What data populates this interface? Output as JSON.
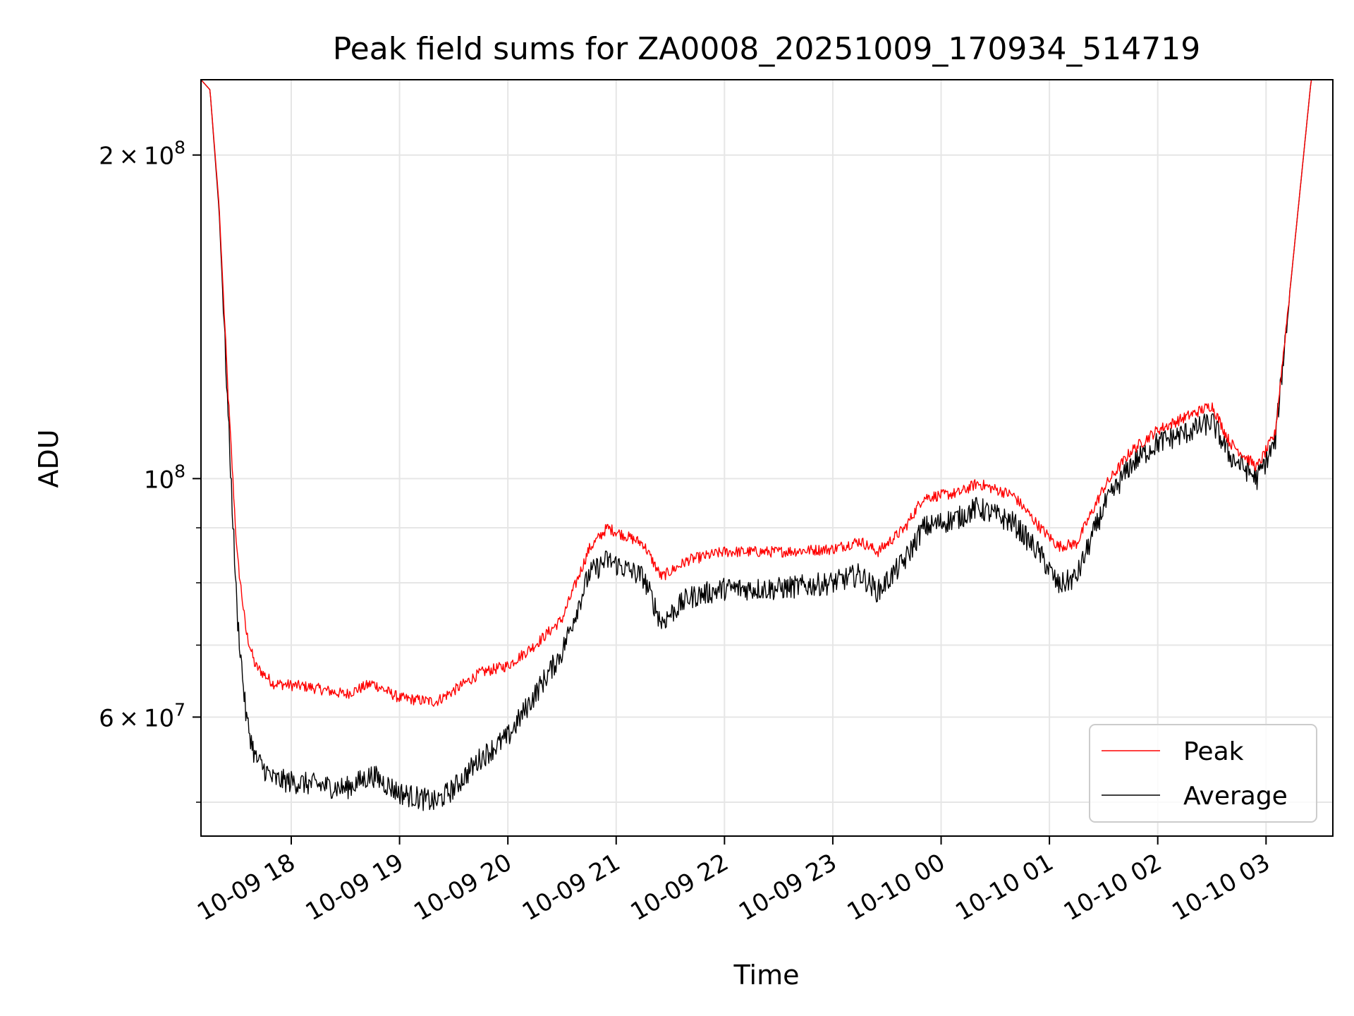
{
  "chart_data": {
    "type": "line",
    "title": "Peak field sums for ZA0008_20251009_170934_514719",
    "xlabel": "Time",
    "ylabel": "ADU",
    "y_scale": "log",
    "ylim": [
      46500000,
      235000000
    ],
    "xlim": [
      "2025-10-09 17:10",
      "2025-10-10 03:37"
    ],
    "grid": true,
    "legend_position": "lower-right",
    "x_ticks": [
      {
        "t": "2025-10-09 18:00",
        "label": "10-09 18"
      },
      {
        "t": "2025-10-09 19:00",
        "label": "10-09 19"
      },
      {
        "t": "2025-10-09 20:00",
        "label": "10-09 20"
      },
      {
        "t": "2025-10-09 21:00",
        "label": "10-09 21"
      },
      {
        "t": "2025-10-09 22:00",
        "label": "10-09 22"
      },
      {
        "t": "2025-10-09 23:00",
        "label": "10-09 23"
      },
      {
        "t": "2025-10-10 00:00",
        "label": "10-10 00"
      },
      {
        "t": "2025-10-10 01:00",
        "label": "10-10 01"
      },
      {
        "t": "2025-10-10 02:00",
        "label": "10-10 02"
      },
      {
        "t": "2025-10-10 03:00",
        "label": "10-10 03"
      }
    ],
    "y_major_ticks": [
      {
        "value": 200000000,
        "mantissa": "2",
        "exponent": "8"
      },
      {
        "value": 100000000,
        "mantissa": "",
        "exponent": "8"
      },
      {
        "value": 60000000,
        "mantissa": "6",
        "exponent": "7"
      }
    ],
    "y_minor_ticks": [
      50000000,
      70000000,
      80000000,
      90000000
    ],
    "series": [
      {
        "name": "Peak",
        "color": "#ff0000",
        "noise": 0.012,
        "points": [
          [
            "2025-10-09 17:10",
            235000000
          ],
          [
            "2025-10-09 17:15",
            230000000
          ],
          [
            "2025-10-09 17:20",
            180000000
          ],
          [
            "2025-10-09 17:25",
            120000000
          ],
          [
            "2025-10-09 17:30",
            85000000
          ],
          [
            "2025-10-09 17:35",
            72000000
          ],
          [
            "2025-10-09 17:40",
            67000000
          ],
          [
            "2025-10-09 17:50",
            64500000
          ],
          [
            "2025-10-09 18:10",
            64000000
          ],
          [
            "2025-10-09 18:30",
            63000000
          ],
          [
            "2025-10-09 18:45",
            64500000
          ],
          [
            "2025-10-09 19:00",
            62500000
          ],
          [
            "2025-10-09 19:20",
            62000000
          ],
          [
            "2025-10-09 19:30",
            63500000
          ],
          [
            "2025-10-09 19:45",
            66000000
          ],
          [
            "2025-10-09 20:00",
            67000000
          ],
          [
            "2025-10-09 20:15",
            70000000
          ],
          [
            "2025-10-09 20:30",
            74000000
          ],
          [
            "2025-10-09 20:45",
            86000000
          ],
          [
            "2025-10-09 20:55",
            90000000
          ],
          [
            "2025-10-09 21:15",
            87000000
          ],
          [
            "2025-10-09 21:25",
            81000000
          ],
          [
            "2025-10-09 21:40",
            84000000
          ],
          [
            "2025-10-09 22:00",
            85500000
          ],
          [
            "2025-10-09 22:30",
            85500000
          ],
          [
            "2025-10-09 23:00",
            86000000
          ],
          [
            "2025-10-09 23:15",
            87500000
          ],
          [
            "2025-10-09 23:25",
            85500000
          ],
          [
            "2025-10-09 23:40",
            90000000
          ],
          [
            "2025-10-09 23:50",
            96000000
          ],
          [
            "2025-10-10 00:10",
            97000000
          ],
          [
            "2025-10-10 00:20",
            99000000
          ],
          [
            "2025-10-10 00:40",
            96500000
          ],
          [
            "2025-10-10 00:55",
            90000000
          ],
          [
            "2025-10-10 01:05",
            86500000
          ],
          [
            "2025-10-10 01:15",
            87000000
          ],
          [
            "2025-10-10 01:30",
            98000000
          ],
          [
            "2025-10-10 01:45",
            106000000
          ],
          [
            "2025-10-10 02:00",
            111000000
          ],
          [
            "2025-10-10 02:20",
            115000000
          ],
          [
            "2025-10-10 02:30",
            117000000
          ],
          [
            "2025-10-10 02:40",
            108000000
          ],
          [
            "2025-10-10 02:55",
            102500000
          ],
          [
            "2025-10-10 03:05",
            110000000
          ],
          [
            "2025-10-10 03:15",
            160000000
          ],
          [
            "2025-10-10 03:25",
            235000000
          ],
          [
            "2025-10-10 03:30",
            235000000
          ]
        ]
      },
      {
        "name": "Average",
        "color": "#000000",
        "noise": 0.025,
        "points": [
          [
            "2025-10-09 17:10",
            235000000
          ],
          [
            "2025-10-09 17:15",
            230000000
          ],
          [
            "2025-10-09 17:20",
            178000000
          ],
          [
            "2025-10-09 17:25",
            115000000
          ],
          [
            "2025-10-09 17:30",
            75000000
          ],
          [
            "2025-10-09 17:35",
            60000000
          ],
          [
            "2025-10-09 17:40",
            55000000
          ],
          [
            "2025-10-09 17:50",
            52500000
          ],
          [
            "2025-10-09 18:10",
            52000000
          ],
          [
            "2025-10-09 18:30",
            51500000
          ],
          [
            "2025-10-09 18:45",
            53000000
          ],
          [
            "2025-10-09 19:00",
            51000000
          ],
          [
            "2025-10-09 19:20",
            50000000
          ],
          [
            "2025-10-09 19:30",
            51500000
          ],
          [
            "2025-10-09 19:45",
            55000000
          ],
          [
            "2025-10-09 20:00",
            57500000
          ],
          [
            "2025-10-09 20:15",
            63000000
          ],
          [
            "2025-10-09 20:30",
            69000000
          ],
          [
            "2025-10-09 20:45",
            81500000
          ],
          [
            "2025-10-09 20:55",
            84000000
          ],
          [
            "2025-10-09 21:15",
            81000000
          ],
          [
            "2025-10-09 21:25",
            73500000
          ],
          [
            "2025-10-09 21:40",
            77500000
          ],
          [
            "2025-10-09 22:00",
            79000000
          ],
          [
            "2025-10-09 22:30",
            79000000
          ],
          [
            "2025-10-09 23:00",
            80000000
          ],
          [
            "2025-10-09 23:15",
            81500000
          ],
          [
            "2025-10-09 23:25",
            78500000
          ],
          [
            "2025-10-09 23:40",
            84000000
          ],
          [
            "2025-10-09 23:50",
            90000000
          ],
          [
            "2025-10-10 00:10",
            92000000
          ],
          [
            "2025-10-10 00:20",
            94000000
          ],
          [
            "2025-10-10 00:40",
            91000000
          ],
          [
            "2025-10-10 00:55",
            85000000
          ],
          [
            "2025-10-10 01:05",
            79500000
          ],
          [
            "2025-10-10 01:15",
            81000000
          ],
          [
            "2025-10-10 01:30",
            94000000
          ],
          [
            "2025-10-10 01:45",
            103000000
          ],
          [
            "2025-10-10 02:00",
            108000000
          ],
          [
            "2025-10-10 02:20",
            111000000
          ],
          [
            "2025-10-10 02:30",
            113000000
          ],
          [
            "2025-10-10 02:40",
            105000000
          ],
          [
            "2025-10-10 02:55",
            100000000
          ],
          [
            "2025-10-10 03:05",
            108000000
          ],
          [
            "2025-10-10 03:15",
            160000000
          ],
          [
            "2025-10-10 03:25",
            235000000
          ],
          [
            "2025-10-10 03:30",
            235000000
          ]
        ]
      }
    ]
  }
}
